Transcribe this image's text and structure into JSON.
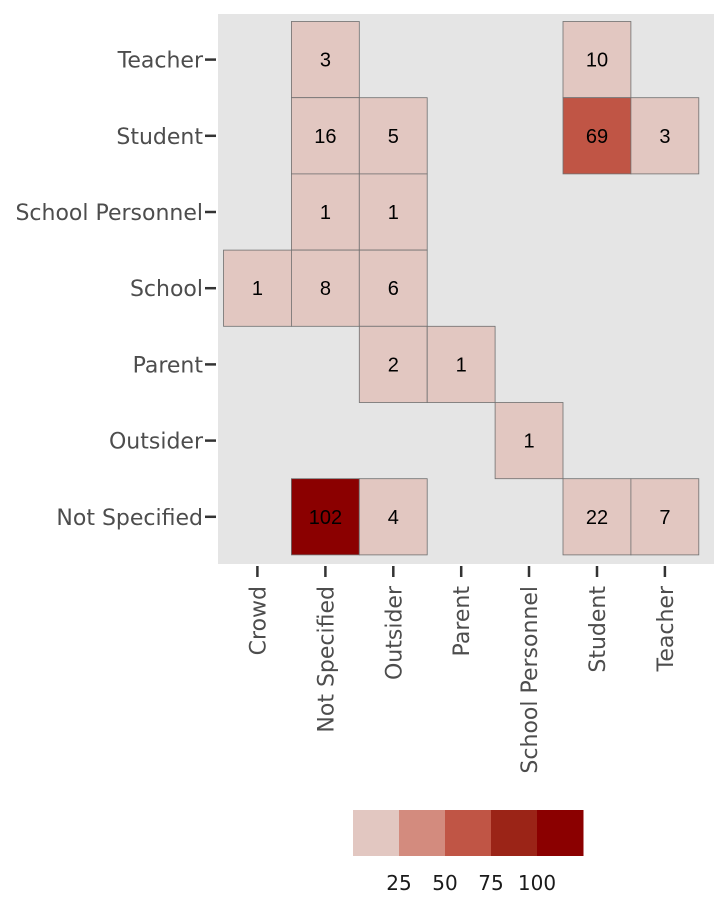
{
  "chart_data": {
    "type": "heatmap",
    "title": "",
    "xlabel": "",
    "ylabel": "",
    "x_categories": [
      "Crowd",
      "Not Specified",
      "Outsider",
      "Parent",
      "School Personnel",
      "Student",
      "Teacher"
    ],
    "y_categories": [
      "Not Specified",
      "Outsider",
      "Parent",
      "School",
      "School Personnel",
      "Student",
      "Teacher"
    ],
    "cells": [
      {
        "x": "Not Specified",
        "y": "Teacher",
        "value": 3
      },
      {
        "x": "Student",
        "y": "Teacher",
        "value": 10
      },
      {
        "x": "Not Specified",
        "y": "Student",
        "value": 16
      },
      {
        "x": "Outsider",
        "y": "Student",
        "value": 5
      },
      {
        "x": "Student",
        "y": "Student",
        "value": 69
      },
      {
        "x": "Teacher",
        "y": "Student",
        "value": 3
      },
      {
        "x": "Not Specified",
        "y": "School Personnel",
        "value": 1
      },
      {
        "x": "Outsider",
        "y": "School Personnel",
        "value": 1
      },
      {
        "x": "Crowd",
        "y": "School",
        "value": 1
      },
      {
        "x": "Not Specified",
        "y": "School",
        "value": 8
      },
      {
        "x": "Outsider",
        "y": "School",
        "value": 6
      },
      {
        "x": "Outsider",
        "y": "Parent",
        "value": 2
      },
      {
        "x": "Parent",
        "y": "Parent",
        "value": 1
      },
      {
        "x": "School Personnel",
        "y": "Outsider",
        "value": 1
      },
      {
        "x": "Not Specified",
        "y": "Not Specified",
        "value": 102
      },
      {
        "x": "Outsider",
        "y": "Not Specified",
        "value": 4
      },
      {
        "x": "Student",
        "y": "Not Specified",
        "value": 22
      },
      {
        "x": "Teacher",
        "y": "Not Specified",
        "value": 7
      }
    ],
    "legend": {
      "placement": "bottom",
      "breaks": [
        25,
        50,
        75,
        100
      ],
      "bin_edges": [
        0,
        25,
        50,
        75,
        100,
        125
      ],
      "colors": [
        "#e2c7c1",
        "#d38b7e",
        "#c05545",
        "#9b2417",
        "#8b0000"
      ]
    },
    "background": "#e5e5e5",
    "grid": false
  }
}
